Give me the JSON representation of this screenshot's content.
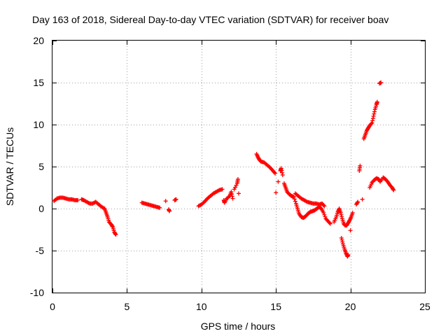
{
  "chart_data": {
    "type": "scatter",
    "title": "Day 163 of 2018, Sidereal Day-to-day VTEC variation (SDTVAR) for receiver boav",
    "xlabel": "GPS time / hours",
    "ylabel": "SDTVAR / TECUs",
    "xlim": [
      0,
      25
    ],
    "ylim": [
      -10,
      20
    ],
    "xticks": [
      0,
      5,
      10,
      15,
      20,
      25
    ],
    "yticks": [
      -10,
      -5,
      0,
      5,
      10,
      15,
      20
    ],
    "xtick_labels": [
      "0",
      "5",
      "10",
      "15",
      "20",
      "25"
    ],
    "ytick_labels": [
      "-10",
      "-5",
      "0",
      "5",
      "10",
      "15",
      "20"
    ],
    "grid": true,
    "marker": "+",
    "color": "#ff0000",
    "segments": [
      {
        "name": "seg1",
        "points": [
          [
            0.1,
            0.9
          ],
          [
            0.3,
            1.2
          ],
          [
            0.5,
            1.3
          ],
          [
            0.7,
            1.3
          ],
          [
            0.9,
            1.2
          ],
          [
            1.1,
            1.1
          ],
          [
            1.3,
            1.1
          ],
          [
            1.5,
            1.0
          ],
          [
            1.7,
            1.0
          ]
        ]
      },
      {
        "name": "seg2",
        "points": [
          [
            1.95,
            1.1
          ],
          [
            2.1,
            1.0
          ],
          [
            2.3,
            0.8
          ],
          [
            2.5,
            0.6
          ],
          [
            2.7,
            0.6
          ],
          [
            2.9,
            0.8
          ],
          [
            3.1,
            0.5
          ],
          [
            3.3,
            0.2
          ],
          [
            3.5,
            0.0
          ],
          [
            3.6,
            -0.5
          ],
          [
            3.7,
            -1.0
          ],
          [
            3.8,
            -1.6
          ],
          [
            3.95,
            -1.9
          ],
          [
            4.05,
            -2.2
          ],
          [
            4.15,
            -2.8
          ],
          [
            4.25,
            -3.1
          ]
        ]
      },
      {
        "name": "seg3",
        "points": [
          [
            6.0,
            0.7
          ],
          [
            6.2,
            0.6
          ],
          [
            6.4,
            0.5
          ],
          [
            6.6,
            0.4
          ],
          [
            6.8,
            0.3
          ],
          [
            7.0,
            0.2
          ],
          [
            7.2,
            0.1
          ],
          [
            7.6,
            0.9
          ],
          [
            7.8,
            -0.1
          ],
          [
            7.85,
            -0.3
          ],
          [
            8.2,
            1.0
          ],
          [
            8.3,
            1.1
          ]
        ]
      },
      {
        "name": "seg4",
        "points": [
          [
            9.8,
            0.3
          ],
          [
            10.0,
            0.5
          ],
          [
            10.2,
            0.8
          ],
          [
            10.4,
            1.2
          ],
          [
            10.6,
            1.5
          ],
          [
            10.8,
            1.8
          ],
          [
            11.0,
            2.0
          ],
          [
            11.2,
            2.2
          ],
          [
            11.4,
            2.3
          ],
          [
            11.5,
            1.0
          ],
          [
            11.55,
            0.7
          ],
          [
            11.7,
            1.2
          ],
          [
            11.9,
            1.5
          ],
          [
            12.0,
            2.0
          ],
          [
            12.1,
            1.2
          ],
          [
            12.2,
            2.3
          ],
          [
            12.4,
            3.0
          ],
          [
            12.45,
            3.5
          ],
          [
            12.5,
            1.8
          ]
        ]
      },
      {
        "name": "seg5",
        "points": [
          [
            13.7,
            6.5
          ],
          [
            13.8,
            6.1
          ],
          [
            13.9,
            5.8
          ],
          [
            14.0,
            5.6
          ],
          [
            14.2,
            5.5
          ],
          [
            14.4,
            5.2
          ],
          [
            14.6,
            4.9
          ],
          [
            14.8,
            4.5
          ],
          [
            14.95,
            4.2
          ],
          [
            15.0,
            1.9
          ],
          [
            15.15,
            3.2
          ],
          [
            15.3,
            4.5
          ],
          [
            15.35,
            4.8
          ],
          [
            15.45,
            4.0
          ],
          [
            15.55,
            3.0
          ],
          [
            15.65,
            2.5
          ],
          [
            15.75,
            2.0
          ],
          [
            15.9,
            1.7
          ],
          [
            16.05,
            1.5
          ],
          [
            16.2,
            1.4
          ],
          [
            16.35,
            0.6
          ],
          [
            16.45,
            0.0
          ],
          [
            16.55,
            -0.6
          ],
          [
            16.7,
            -1.0
          ],
          [
            16.85,
            -1.1
          ],
          [
            17.0,
            -0.9
          ],
          [
            17.15,
            -0.6
          ],
          [
            17.3,
            -0.4
          ],
          [
            17.45,
            -0.3
          ],
          [
            17.6,
            -0.2
          ],
          [
            17.75,
            0.0
          ],
          [
            17.9,
            0.2
          ],
          [
            18.05,
            0.0
          ],
          [
            18.2,
            -0.5
          ],
          [
            18.35,
            -1.2
          ],
          [
            18.5,
            -1.5
          ],
          [
            18.65,
            -1.8
          ]
        ]
      },
      {
        "name": "seg6",
        "points": [
          [
            16.3,
            1.8
          ],
          [
            16.5,
            1.5
          ],
          [
            16.7,
            1.2
          ],
          [
            16.9,
            1.0
          ],
          [
            17.1,
            0.8
          ],
          [
            17.3,
            0.7
          ],
          [
            17.5,
            0.6
          ],
          [
            17.7,
            0.6
          ],
          [
            17.9,
            0.5
          ],
          [
            18.1,
            0.6
          ],
          [
            18.25,
            0.3
          ]
        ]
      },
      {
        "name": "seg7",
        "points": [
          [
            18.9,
            -1.6
          ],
          [
            19.05,
            -1.0
          ],
          [
            19.15,
            -0.4
          ],
          [
            19.25,
            0.0
          ],
          [
            19.35,
            -0.5
          ],
          [
            19.45,
            -1.2
          ],
          [
            19.55,
            -1.8
          ],
          [
            19.65,
            -2.0
          ],
          [
            19.75,
            -2.0
          ],
          [
            19.85,
            -1.7
          ],
          [
            19.95,
            -1.4
          ],
          [
            20.05,
            -1.0
          ],
          [
            20.15,
            -0.5
          ],
          [
            20.0,
            -2.6
          ],
          [
            19.4,
            -3.5
          ],
          [
            19.5,
            -4.2
          ],
          [
            19.6,
            -4.8
          ],
          [
            19.7,
            -5.3
          ],
          [
            19.8,
            -5.7
          ],
          [
            19.85,
            -5.5
          ]
        ]
      },
      {
        "name": "seg8",
        "points": [
          [
            20.4,
            0.5
          ],
          [
            20.5,
            0.8
          ],
          [
            20.6,
            4.5
          ],
          [
            20.65,
            5.1
          ],
          [
            20.8,
            1.1
          ],
          [
            20.9,
            8.3
          ],
          [
            21.0,
            8.8
          ],
          [
            21.1,
            9.3
          ],
          [
            21.2,
            9.6
          ],
          [
            21.3,
            9.9
          ],
          [
            21.45,
            10.2
          ],
          [
            21.55,
            11.0
          ],
          [
            21.65,
            11.8
          ],
          [
            21.75,
            12.4
          ],
          [
            21.8,
            12.7
          ],
          [
            21.95,
            14.9
          ],
          [
            22.05,
            15.0
          ]
        ]
      },
      {
        "name": "seg9",
        "points": [
          [
            21.3,
            2.5
          ],
          [
            21.45,
            3.1
          ],
          [
            21.6,
            3.4
          ],
          [
            21.75,
            3.6
          ],
          [
            21.9,
            3.5
          ],
          [
            22.0,
            3.2
          ],
          [
            22.2,
            3.7
          ],
          [
            22.35,
            3.5
          ],
          [
            22.5,
            3.2
          ],
          [
            22.65,
            2.8
          ],
          [
            22.8,
            2.5
          ],
          [
            22.9,
            2.2
          ]
        ]
      }
    ]
  }
}
